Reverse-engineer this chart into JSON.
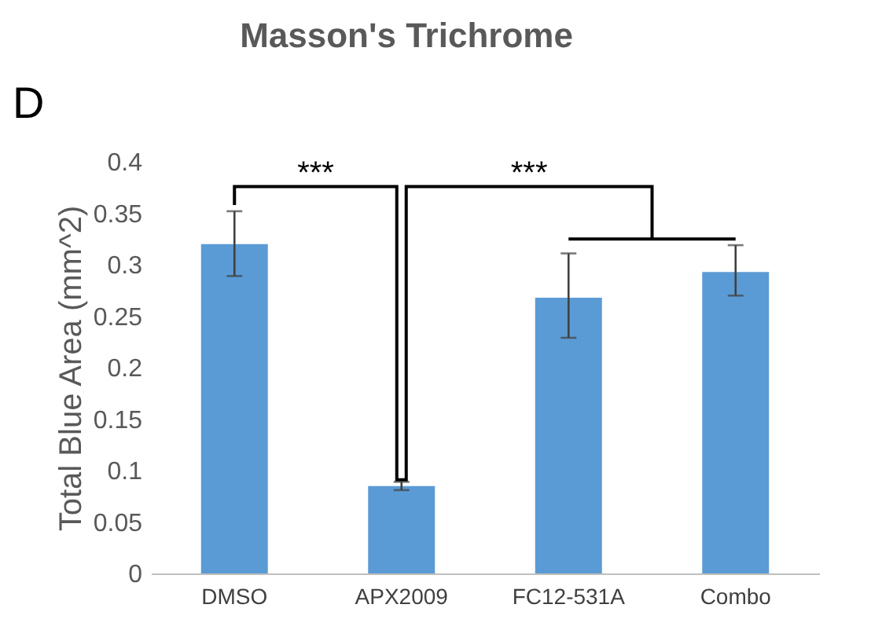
{
  "chart_data": {
    "type": "bar",
    "title": "Masson's Trichrome",
    "ylabel": "Total Blue Area (mm^2)",
    "categories": [
      "DMSO",
      "APX2009",
      "FC12-531A",
      "Combo"
    ],
    "values": [
      0.32,
      0.085,
      0.268,
      0.293
    ],
    "errors": [
      [
        0.289,
        0.352
      ],
      [
        0.081,
        0.089
      ],
      [
        0.229,
        0.311
      ],
      [
        0.27,
        0.319
      ]
    ],
    "color": "#5b9bd5",
    "ylim": [
      0,
      0.4
    ],
    "yticks": [
      0,
      0.05,
      0.1,
      0.15,
      0.2,
      0.25,
      0.3,
      0.35,
      0.4
    ],
    "grid": false,
    "annotations": [
      "D",
      "***",
      "***"
    ]
  }
}
